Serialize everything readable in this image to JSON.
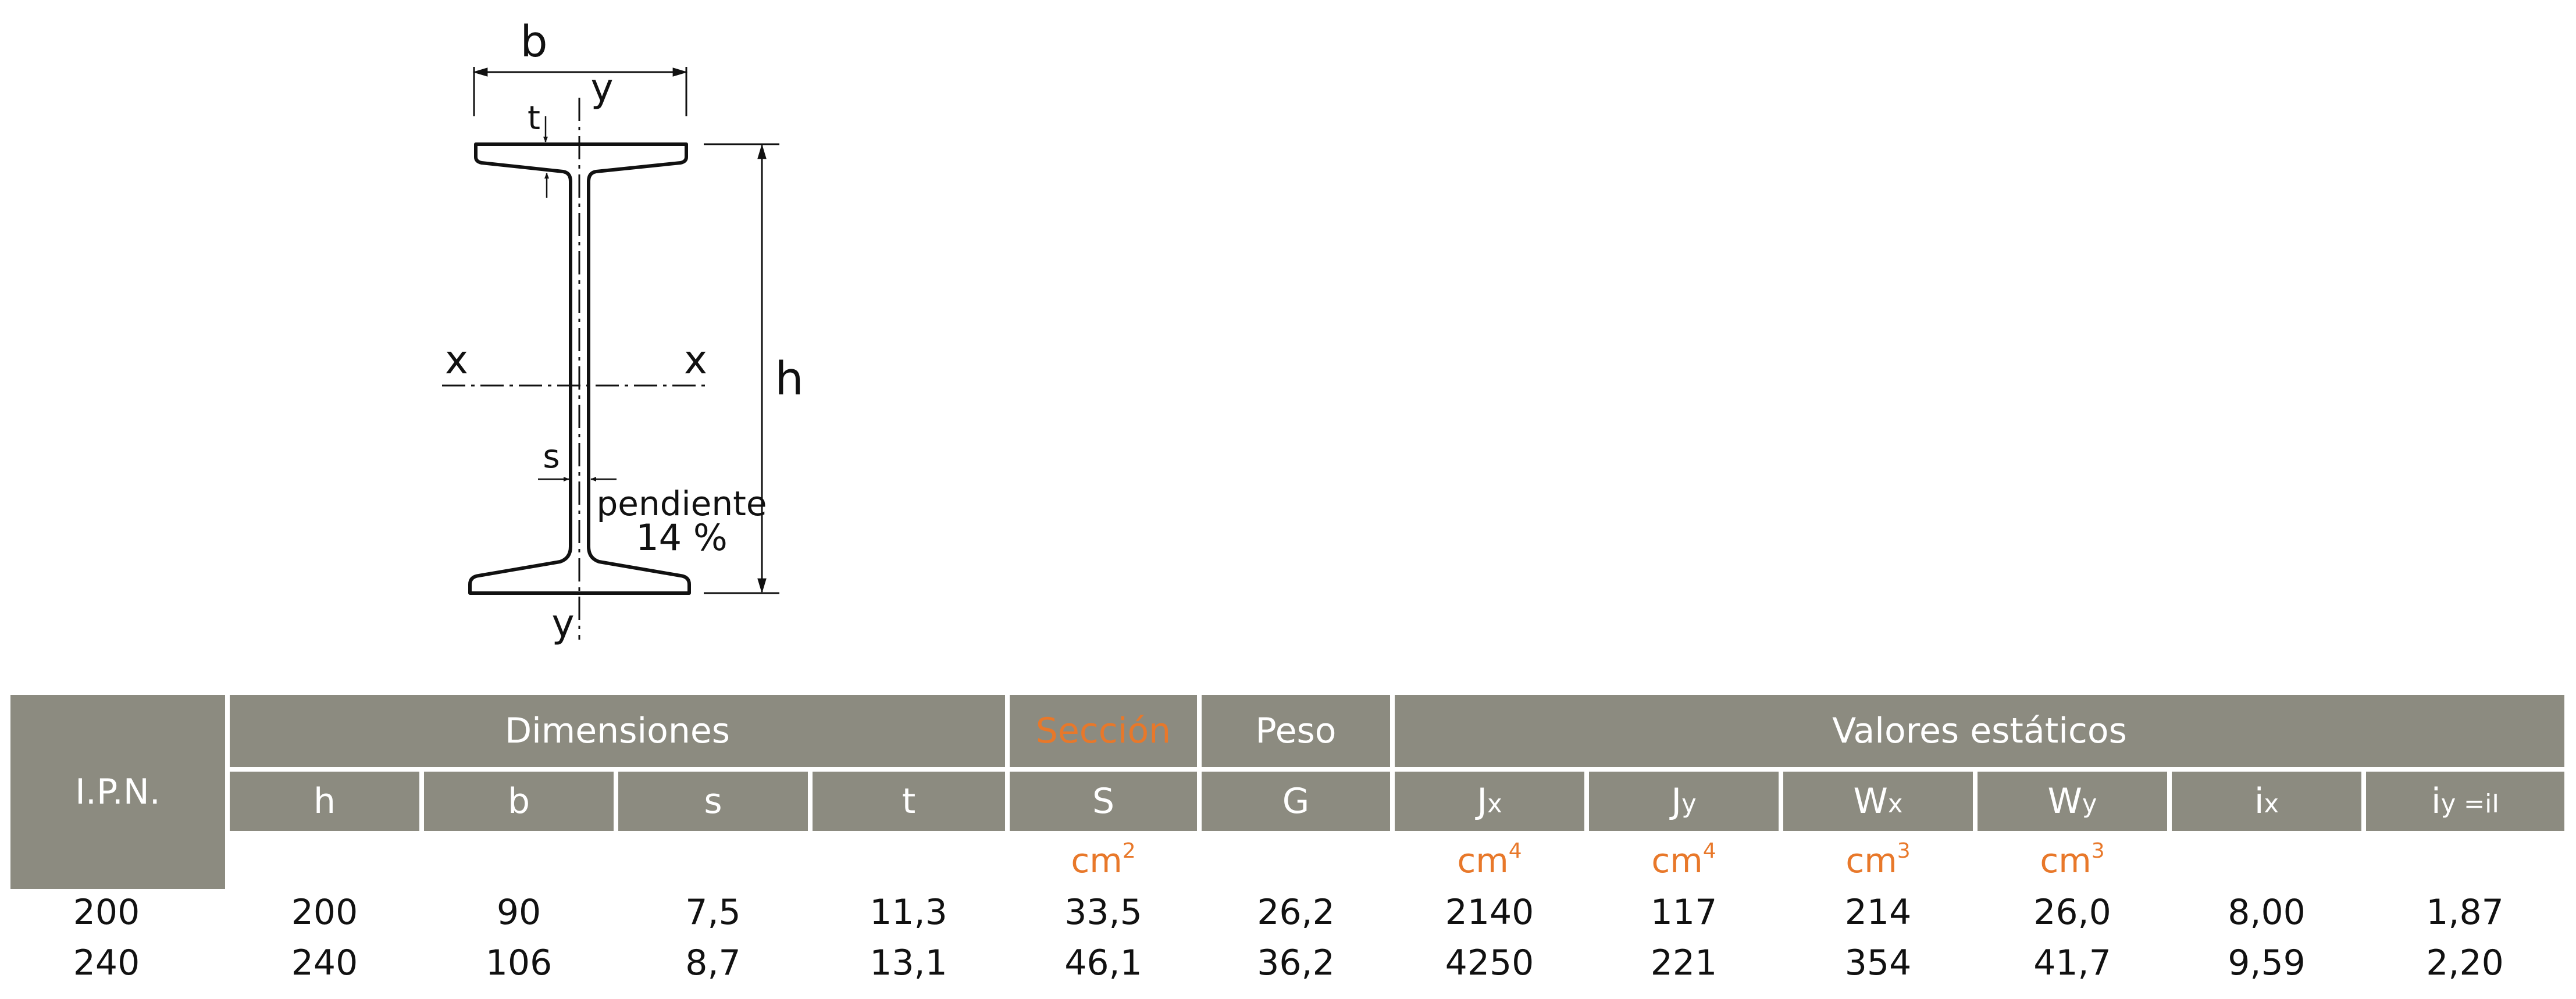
{
  "drawing": {
    "label_b": "b",
    "label_y_top": "y",
    "label_y_bottom": "y",
    "label_t": "t",
    "label_x_left": "x",
    "label_x_right": "x",
    "label_h": "h",
    "label_s": "s",
    "slope_label": "pendiente",
    "slope_value": "14 %"
  },
  "table": {
    "ipn_label": "I.P.N.",
    "groups": {
      "dimensiones": "Dimensiones",
      "seccion": "Sección",
      "peso": "Peso",
      "valores": "Valores estáticos"
    },
    "columns": {
      "h": "h",
      "b": "b",
      "s": "s",
      "t": "t",
      "S": "S",
      "G": "G",
      "Jx": "J",
      "Jx_sub": "x",
      "Jy": "J",
      "Jy_sub": "y",
      "Wx": "W",
      "Wx_sub": "x",
      "Wy": "W",
      "Wy_sub": "y",
      "ix": "i",
      "ix_sub": "x",
      "iy": "i",
      "iy_sub": "y =i",
      "iy_sub2": "I"
    },
    "units": {
      "S": "cm",
      "S_exp": "2",
      "Jx": "cm",
      "Jx_exp": "4",
      "Jy": "cm",
      "Jy_exp": "4",
      "Wx": "cm",
      "Wx_exp": "3",
      "Wy": "cm",
      "Wy_exp": "3"
    },
    "rows": [
      [
        "200",
        "200",
        "90",
        "7,5",
        "11,3",
        "33,5",
        "26,2",
        "2140",
        "117",
        "214",
        "26,0",
        "8,00",
        "1,87"
      ],
      [
        "240",
        "240",
        "106",
        "8,7",
        "13,1",
        "46,1",
        "36,2",
        "4250",
        "221",
        "354",
        "41,7",
        "9,59",
        "2,20"
      ]
    ]
  },
  "colors": {
    "header_bg": "#8c8b80",
    "header_text": "#ffffff",
    "accent": "#e8782a",
    "ink": "#111111"
  }
}
